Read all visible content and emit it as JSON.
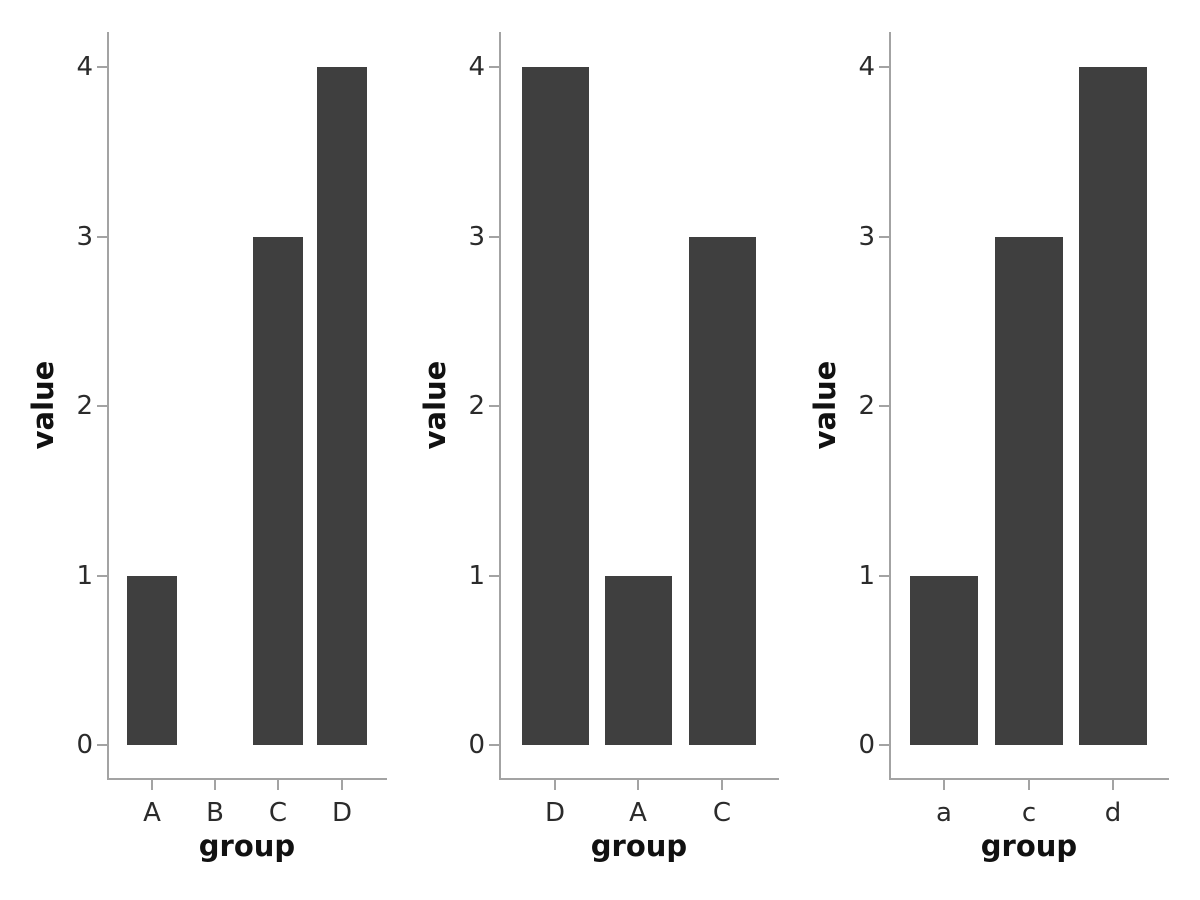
{
  "figure": {
    "background": "#ffffff",
    "bar_color": "#3F3F3F",
    "axis_color": "#A3A3A3",
    "tick_label_color": "#2B2B2B",
    "axis_title_color": "#111111"
  },
  "chart_data": [
    {
      "type": "bar",
      "panel": "left",
      "title": "",
      "xlabel": "group",
      "ylabel": "value",
      "categories": [
        "A",
        "B",
        "C",
        "D"
      ],
      "values": [
        1,
        0,
        3,
        4
      ],
      "yticks": [
        0,
        1,
        2,
        3,
        4
      ],
      "ylim": [
        0,
        4
      ],
      "grid": false,
      "legend": false
    },
    {
      "type": "bar",
      "panel": "middle",
      "title": "",
      "xlabel": "group",
      "ylabel": "value",
      "categories": [
        "D",
        "A",
        "C"
      ],
      "values": [
        4,
        1,
        3
      ],
      "yticks": [
        0,
        1,
        2,
        3,
        4
      ],
      "ylim": [
        0,
        4
      ],
      "grid": false,
      "legend": false
    },
    {
      "type": "bar",
      "panel": "right",
      "title": "",
      "xlabel": "group",
      "ylabel": "value",
      "categories": [
        "a",
        "c",
        "d"
      ],
      "values": [
        1,
        3,
        4
      ],
      "yticks": [
        0,
        1,
        2,
        3,
        4
      ],
      "ylim": [
        0,
        4
      ],
      "grid": false,
      "legend": false
    }
  ]
}
